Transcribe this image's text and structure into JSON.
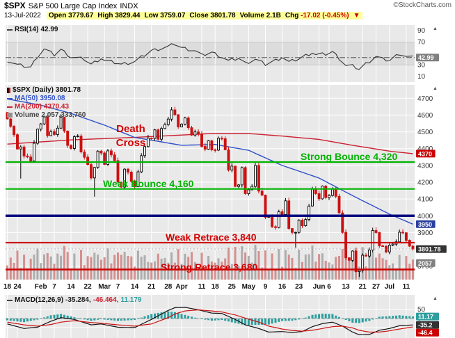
{
  "header": {
    "symbol": "$SPX",
    "name": "S&P 500 Large Cap Index",
    "exchange": "INDX",
    "brand": "©StockCharts.com",
    "date": "13-Jul-2022",
    "quote": [
      {
        "label": "Open",
        "value": "3779.67"
      },
      {
        "label": "High",
        "value": "3829.44"
      },
      {
        "label": "Low",
        "value": "3759.07"
      },
      {
        "label": "Close",
        "value": "3801.78"
      },
      {
        "label": "Volume",
        "value": "2.1B"
      },
      {
        "label": "Chg",
        "value": "-17.02 (-0.45%)"
      }
    ]
  },
  "icons": {
    "up_triangle": "▲",
    "down_triangle": "▼"
  },
  "rsi_panel": {
    "label": "RSI(14)",
    "value": "42.99",
    "axis": [
      90,
      70,
      30,
      10
    ],
    "badge": {
      "text": "42.99",
      "bg": "#808080",
      "value": 42.99
    }
  },
  "main_panel": {
    "legend": [
      {
        "label": "$SPX (Daily)",
        "value": "3801.78",
        "color": "#000000"
      },
      {
        "label": "MA(50)",
        "value": "3950.08",
        "color": "#3050c8"
      },
      {
        "label": "MA(200)",
        "value": "4370.43",
        "color": "#cc2030"
      },
      {
        "label": "Volume",
        "value": "2,057,333,760",
        "color": "#555555"
      }
    ],
    "death_cross_label": "Death Cross",
    "badges": [
      {
        "text": "4370",
        "bg": "#cc0000",
        "price": 4370.43
      },
      {
        "text": "3950",
        "bg": "#2b3f9e",
        "price": 3950.08
      },
      {
        "text": "3801.78",
        "bg": "#333333",
        "price": 3801.78
      },
      {
        "text": "2057",
        "bg": "#808080",
        "price": 3718
      }
    ]
  },
  "macd_panel": {
    "label": "MACD(12,26,9)",
    "v1": "-35.284,",
    "v2": "-46.464,",
    "v3": "11.179",
    "axis": [
      50,
      0
    ],
    "badges": [
      {
        "text": "11.17",
        "bg": "#2e9e9e",
        "value": 11.179
      },
      {
        "text": "-35.2",
        "bg": "#333333",
        "value": -35.284
      },
      {
        "text": "-46.4",
        "bg": "#cc0000",
        "value": -46.464
      }
    ]
  },
  "x_axis": {
    "ticks": [
      {
        "label": "18",
        "i": 0
      },
      {
        "label": "24",
        "i": 3
      },
      {
        "label": "Feb",
        "i": 10
      },
      {
        "label": "7",
        "i": 14
      },
      {
        "label": "14",
        "i": 19
      },
      {
        "label": "22",
        "i": 24
      },
      {
        "label": "Mar",
        "i": 29
      },
      {
        "label": "7",
        "i": 33
      },
      {
        "label": "14",
        "i": 38
      },
      {
        "label": "21",
        "i": 43
      },
      {
        "label": "28",
        "i": 48
      },
      {
        "label": "Apr",
        "i": 52
      },
      {
        "label": "11",
        "i": 58
      },
      {
        "label": "18",
        "i": 62
      },
      {
        "label": "25",
        "i": 67
      },
      {
        "label": "May",
        "i": 72
      },
      {
        "label": "9",
        "i": 77
      },
      {
        "label": "16",
        "i": 82
      },
      {
        "label": "23",
        "i": 87
      },
      {
        "label": "Jun",
        "i": 93
      },
      {
        "label": "6",
        "i": 96
      },
      {
        "label": "13",
        "i": 101
      },
      {
        "label": "21",
        "i": 106
      },
      {
        "label": "27",
        "i": 110
      },
      {
        "label": "Jul",
        "i": 114
      },
      {
        "label": "11",
        "i": 119
      }
    ]
  },
  "chart_data": {
    "type": "candlestick",
    "symbol": "$SPX",
    "timeframe": "Daily",
    "title": "S&P 500 Large Cap Index",
    "price_axis": [
      4700,
      4600,
      4500,
      4400,
      4300,
      4200,
      4100,
      4000,
      3900,
      3800,
      3700
    ],
    "open_first": 4615,
    "closes": [
      4577,
      4533,
      4483,
      4398,
      4410,
      4356,
      4350,
      4327,
      4432,
      4516,
      4547,
      4589,
      4477,
      4501,
      4484,
      4522,
      4587,
      4504,
      4419,
      4401,
      4471,
      4475,
      4380,
      4349,
      4305,
      4226,
      4288,
      4385,
      4374,
      4306,
      4387,
      4363,
      4329,
      4201,
      4171,
      4278,
      4260,
      4204,
      4173,
      4262,
      4358,
      4412,
      4463,
      4461,
      4512,
      4456,
      4520,
      4543,
      4576,
      4631,
      4602,
      4530,
      4546,
      4583,
      4525,
      4481,
      4500,
      4488,
      4413,
      4397,
      4447,
      4393,
      4391,
      4462,
      4459,
      4393,
      4272,
      4296,
      4175,
      4184,
      4287,
      4132,
      4155,
      4175,
      4300,
      4147,
      4123,
      3991,
      4001,
      3935,
      3930,
      4024,
      4008,
      4089,
      3924,
      3901,
      3901,
      3974,
      3941,
      3978,
      4058,
      4158,
      4132,
      4101,
      4177,
      4109,
      4121,
      4160,
      4116,
      4017,
      3901,
      3750,
      3735,
      3790,
      3667,
      3675,
      3765,
      3760,
      3796,
      3912,
      3900,
      3821,
      3818,
      3785,
      3825,
      3831,
      3845,
      3902,
      3899,
      3854,
      3819,
      3801.78
    ],
    "wick_lows": {
      "4": 4222,
      "26": 4114,
      "86": 3810,
      "105": 3636
    },
    "levels": [
      {
        "value": 4320,
        "color": "#00b300",
        "width": 2.2,
        "label": "Strong Bounce 4,320"
      },
      {
        "value": 4160,
        "color": "#00b300",
        "width": 2.2,
        "label": "Weak Bounce 4,160"
      },
      {
        "value": 4000,
        "color": "#000080",
        "width": 3.5,
        "label": ""
      },
      {
        "value": 3840,
        "color": "#cc0000",
        "width": 2,
        "label": "Weak Retrace 3,840"
      },
      {
        "value": 3680,
        "color": "#cc0000",
        "width": 2.4,
        "label": "Strong Retrace 3,680"
      }
    ],
    "ma50": [
      [
        0,
        4696
      ],
      [
        10,
        4659
      ],
      [
        19,
        4610
      ],
      [
        29,
        4540
      ],
      [
        38,
        4467
      ],
      [
        52,
        4420
      ],
      [
        62,
        4425
      ],
      [
        72,
        4390
      ],
      [
        82,
        4300
      ],
      [
        93,
        4225
      ],
      [
        103,
        4120
      ],
      [
        114,
        4010
      ],
      [
        121,
        3950
      ]
    ],
    "ma200": [
      [
        0,
        4427
      ],
      [
        19,
        4452
      ],
      [
        38,
        4467
      ],
      [
        61,
        4490
      ],
      [
        72,
        4490
      ],
      [
        82,
        4475
      ],
      [
        93,
        4455
      ],
      [
        103,
        4420
      ],
      [
        114,
        4385
      ],
      [
        121,
        4370
      ]
    ],
    "rsi": [
      [
        0,
        38
      ],
      [
        3,
        30
      ],
      [
        7,
        26
      ],
      [
        9,
        45
      ],
      [
        11,
        58
      ],
      [
        14,
        48
      ],
      [
        16,
        57
      ],
      [
        19,
        44
      ],
      [
        23,
        40
      ],
      [
        25,
        31
      ],
      [
        28,
        42
      ],
      [
        29,
        38
      ],
      [
        33,
        33
      ],
      [
        34,
        31
      ],
      [
        38,
        36
      ],
      [
        43,
        55
      ],
      [
        48,
        62
      ],
      [
        50,
        67
      ],
      [
        52,
        60
      ],
      [
        56,
        55
      ],
      [
        58,
        47
      ],
      [
        61,
        52
      ],
      [
        64,
        44
      ],
      [
        66,
        37
      ],
      [
        69,
        42
      ],
      [
        71,
        33
      ],
      [
        74,
        40
      ],
      [
        77,
        31
      ],
      [
        80,
        38
      ],
      [
        82,
        44
      ],
      [
        84,
        35
      ],
      [
        87,
        41
      ],
      [
        91,
        52
      ],
      [
        92,
        48
      ],
      [
        95,
        49
      ],
      [
        97,
        53
      ],
      [
        99,
        42
      ],
      [
        101,
        29
      ],
      [
        103,
        28
      ],
      [
        105,
        23
      ],
      [
        107,
        32
      ],
      [
        110,
        45
      ],
      [
        112,
        40
      ],
      [
        114,
        38
      ],
      [
        117,
        50
      ],
      [
        119,
        45
      ],
      [
        121,
        43
      ]
    ],
    "macd": [
      [
        0,
        -30
      ],
      [
        5,
        -55
      ],
      [
        9,
        -48
      ],
      [
        13,
        -15
      ],
      [
        16,
        5
      ],
      [
        20,
        -5
      ],
      [
        25,
        -35
      ],
      [
        28,
        -30
      ],
      [
        33,
        -48
      ],
      [
        38,
        -50
      ],
      [
        43,
        -5
      ],
      [
        48,
        45
      ],
      [
        50,
        60
      ],
      [
        53,
        62
      ],
      [
        57,
        48
      ],
      [
        61,
        30
      ],
      [
        64,
        28
      ],
      [
        68,
        -5
      ],
      [
        71,
        -35
      ],
      [
        75,
        -55
      ],
      [
        78,
        -75
      ],
      [
        82,
        -72
      ],
      [
        85,
        -78
      ],
      [
        88,
        -72
      ],
      [
        91,
        -45
      ],
      [
        94,
        -28
      ],
      [
        97,
        -20
      ],
      [
        100,
        -42
      ],
      [
        103,
        -75
      ],
      [
        105,
        -90
      ],
      [
        108,
        -88
      ],
      [
        111,
        -65
      ],
      [
        114,
        -55
      ],
      [
        117,
        -40
      ],
      [
        121,
        -35.3
      ]
    ],
    "signal": [
      [
        0,
        -20
      ],
      [
        5,
        -35
      ],
      [
        9,
        -42
      ],
      [
        13,
        -33
      ],
      [
        16,
        -20
      ],
      [
        20,
        -12
      ],
      [
        25,
        -22
      ],
      [
        28,
        -26
      ],
      [
        33,
        -35
      ],
      [
        38,
        -42
      ],
      [
        43,
        -30
      ],
      [
        48,
        5
      ],
      [
        50,
        25
      ],
      [
        53,
        42
      ],
      [
        57,
        48
      ],
      [
        61,
        42
      ],
      [
        64,
        36
      ],
      [
        68,
        20
      ],
      [
        71,
        2
      ],
      [
        75,
        -20
      ],
      [
        78,
        -42
      ],
      [
        82,
        -58
      ],
      [
        85,
        -66
      ],
      [
        88,
        -70
      ],
      [
        91,
        -65
      ],
      [
        94,
        -55
      ],
      [
        97,
        -45
      ],
      [
        100,
        -42
      ],
      [
        103,
        -52
      ],
      [
        105,
        -65
      ],
      [
        108,
        -75
      ],
      [
        111,
        -75
      ],
      [
        114,
        -68
      ],
      [
        117,
        -58
      ],
      [
        121,
        -46.5
      ]
    ],
    "last": {
      "close": 3801.78,
      "ma50": 3950.08,
      "ma200": 4370.43,
      "rsi": 42.99,
      "macd": -35.284,
      "signal": -46.464,
      "hist": 11.179,
      "volume": 2057333760
    }
  }
}
